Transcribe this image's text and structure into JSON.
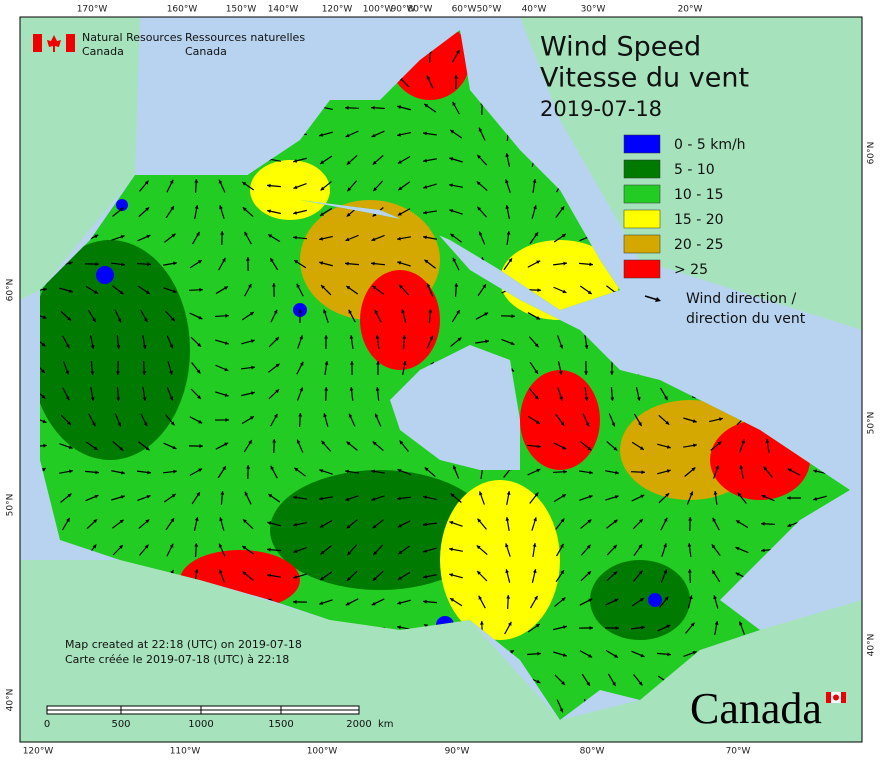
{
  "header": {
    "org_en": [
      "Natural Resources",
      "Canada"
    ],
    "org_fr": [
      "Ressources naturelles",
      "Canada"
    ]
  },
  "title": [
    "Wind Speed",
    "Vitesse du vent"
  ],
  "date": "2019-07-18",
  "legend": {
    "items": [
      {
        "label": "0 - 5 km/h",
        "color": "#0000ff"
      },
      {
        "label": "5 - 10",
        "color": "#007a00"
      },
      {
        "label": "10 - 15",
        "color": "#22cc22"
      },
      {
        "label": "15 - 20",
        "color": "#ffff00"
      },
      {
        "label": "20 - 25",
        "color": "#d4a800"
      },
      {
        "label": "> 25",
        "color": "#ff0000"
      }
    ],
    "arrow_label": [
      "Wind direction /",
      "direction du vent"
    ]
  },
  "top_longitudes": [
    "170°W",
    "160°W",
    "150°W",
    "140°W",
    "120°W",
    "100°W",
    "90°W",
    "80°W",
    "60°W",
    "50°W",
    "40°W",
    "30°W",
    "20°W"
  ],
  "bottom_longitudes": [
    "120°W",
    "110°W",
    "100°W",
    "90°W",
    "80°W",
    "70°W"
  ],
  "left_latitudes": [
    "60°N",
    "50°N",
    "40°N"
  ],
  "right_latitudes": [
    "60°N",
    "50°N",
    "40°N"
  ],
  "scale": {
    "labels": [
      "0",
      "500",
      "1000",
      "1500",
      "2000"
    ],
    "unit": "km"
  },
  "credits": [
    "Map created at 22:18 (UTC) on 2019-07-18",
    "Carte créée le 2019-07-18 (UTC) à 22:18"
  ],
  "wordmark": "Canada"
}
